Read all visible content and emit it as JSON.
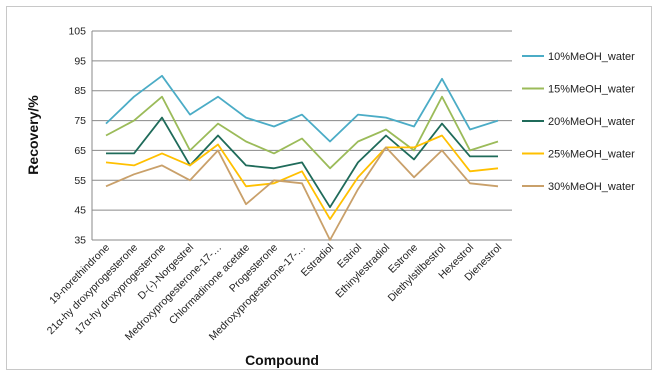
{
  "chart_data": {
    "type": "line",
    "title": "",
    "xlabel": "Compound",
    "ylabel": "Recovery/%",
    "ylim": [
      35,
      105
    ],
    "yticks": [
      35,
      45,
      55,
      65,
      75,
      85,
      95,
      105
    ],
    "grid": true,
    "legend_position": "right",
    "categories": [
      "19-norethindrone",
      "21α-hy droxyprogesterone",
      "17α-hy droxyprogesterone",
      "D-(-)-Norgestrel",
      "Medroxyprogesterone-17-…",
      "Chlormadinone acetate",
      "Progesterone",
      "Medroxyprogesterone-17-…",
      "Estradiol",
      "Estriol",
      "Ethinylestradiol",
      "Estrone",
      "Diethylstilbestrol",
      "Hexestrol",
      "Dienestrol"
    ],
    "series": [
      {
        "name": "10%MeOH_water",
        "color": "#4bacc6",
        "values": [
          74,
          83,
          90,
          77,
          83,
          76,
          73,
          77,
          68,
          77,
          76,
          73,
          89,
          72,
          75
        ]
      },
      {
        "name": "15%MeOH_water",
        "color": "#9bbb59",
        "values": [
          70,
          75,
          83,
          65,
          74,
          68,
          64,
          69,
          59,
          68,
          72,
          65,
          83,
          65,
          68
        ]
      },
      {
        "name": "20%MeOH_water",
        "color": "#1f6b5a",
        "values": [
          64,
          64,
          76,
          60,
          70,
          60,
          59,
          61,
          46,
          61,
          70,
          62,
          74,
          63,
          63
        ]
      },
      {
        "name": "25%MeOH_water",
        "color": "#ffc000",
        "values": [
          61,
          60,
          64,
          60,
          67,
          53,
          54,
          58,
          42,
          56,
          66,
          66,
          70,
          58,
          59
        ]
      },
      {
        "name": "30%MeOH_water",
        "color": "#c9a06a",
        "values": [
          53,
          57,
          60,
          55,
          65,
          47,
          55,
          54,
          35,
          52,
          66,
          56,
          65,
          54,
          53
        ]
      }
    ]
  }
}
